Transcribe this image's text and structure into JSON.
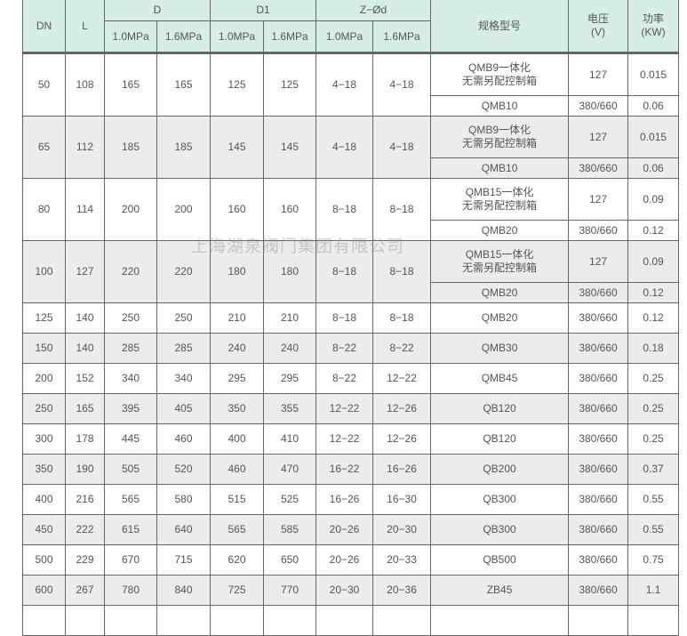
{
  "header": {
    "dn": "DN",
    "l": "L",
    "d": "D",
    "d1": "D1",
    "zd": "Z−Ød",
    "model": "规格型号",
    "voltage": "电压\n(V)",
    "power": "功率\n(KW)",
    "p10": "1.0MPa",
    "p16": "1.6MPa"
  },
  "grouped_rows": [
    {
      "dn": "50",
      "l": "108",
      "d10": "165",
      "d16": "165",
      "d1_10": "125",
      "d1_16": "125",
      "z10": "4−18",
      "z16": "4−18",
      "model1": "QMB9一体化\n无需另配控制箱",
      "v1": "127",
      "p1": "0.015",
      "model2": "QMB10",
      "v2": "380/660",
      "p2": "0.06"
    },
    {
      "dn": "65",
      "l": "112",
      "d10": "185",
      "d16": "185",
      "d1_10": "145",
      "d1_16": "145",
      "z10": "4−18",
      "z16": "4−18",
      "model1": "QMB9一体化\n无需另配控制箱",
      "v1": "127",
      "p1": "0.015",
      "model2": "QMB10",
      "v2": "380/660",
      "p2": "0.06"
    },
    {
      "dn": "80",
      "l": "114",
      "d10": "200",
      "d16": "200",
      "d1_10": "160",
      "d1_16": "160",
      "z10": "8−18",
      "z16": "8−18",
      "model1": "QMB15一体化\n无需另配控制箱",
      "v1": "127",
      "p1": "0.09",
      "model2": "QMB20",
      "v2": "380/660",
      "p2": "0.12"
    },
    {
      "dn": "100",
      "l": "127",
      "d10": "220",
      "d16": "220",
      "d1_10": "180",
      "d1_16": "180",
      "z10": "8−18",
      "z16": "8−18",
      "model1": "QMB15一体化\n无需另配控制箱",
      "v1": "127",
      "p1": "0.09",
      "model2": "QMB20",
      "v2": "380/660",
      "p2": "0.12"
    }
  ],
  "rows": [
    [
      "125",
      "140",
      "250",
      "250",
      "210",
      "210",
      "8−18",
      "8−18",
      "QMB20",
      "380/660",
      "0.12"
    ],
    [
      "150",
      "140",
      "285",
      "285",
      "240",
      "240",
      "8−22",
      "8−22",
      "QMB30",
      "380/660",
      "0.18"
    ],
    [
      "200",
      "152",
      "340",
      "340",
      "295",
      "295",
      "8−22",
      "12−22",
      "QMB45",
      "380/660",
      "0.25"
    ],
    [
      "250",
      "165",
      "395",
      "405",
      "350",
      "355",
      "12−22",
      "12−26",
      "QB120",
      "380/660",
      "0.25"
    ],
    [
      "300",
      "178",
      "445",
      "460",
      "400",
      "410",
      "12−22",
      "12−26",
      "QB120",
      "380/660",
      "0.25"
    ],
    [
      "350",
      "190",
      "505",
      "520",
      "460",
      "470",
      "16−22",
      "16−26",
      "QB200",
      "380/660",
      "0.37"
    ],
    [
      "400",
      "216",
      "565",
      "580",
      "515",
      "525",
      "16−26",
      "16−30",
      "QB300",
      "380/660",
      "0.55"
    ],
    [
      "450",
      "222",
      "615",
      "640",
      "565",
      "585",
      "20−26",
      "20−30",
      "QB300",
      "380/660",
      "0.55"
    ],
    [
      "500",
      "229",
      "670",
      "715",
      "620",
      "650",
      "20−26",
      "20−33",
      "QB500",
      "380/660",
      "0.75"
    ],
    [
      "600",
      "267",
      "780",
      "840",
      "725",
      "770",
      "20−30",
      "20−36",
      "ZB45",
      "380/660",
      "1.1"
    ]
  ],
  "watermark": "上海湖泉阀门集团有限公司"
}
